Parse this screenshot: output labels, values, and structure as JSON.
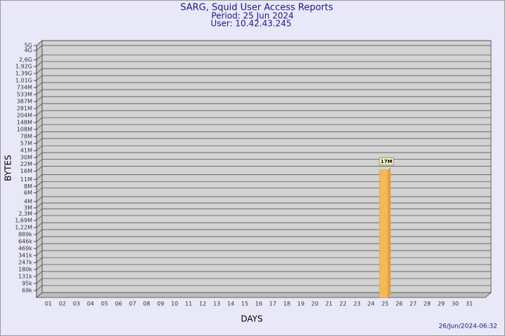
{
  "chart_data": {
    "type": "bar",
    "title": "SARG, Squid User Access Reports",
    "subtitle": [
      "Period: 25 Jun 2024",
      "User: 10.42.43.245"
    ],
    "x_label": "DAYS",
    "y_label": "BYTES",
    "footer": "26/Jun/2024-06:32",
    "categories": [
      "01",
      "02",
      "03",
      "04",
      "05",
      "06",
      "07",
      "08",
      "09",
      "10",
      "11",
      "12",
      "13",
      "14",
      "15",
      "16",
      "17",
      "18",
      "19",
      "20",
      "21",
      "22",
      "23",
      "24",
      "25",
      "26",
      "27",
      "28",
      "29",
      "30",
      "31"
    ],
    "values": [
      null,
      null,
      null,
      null,
      null,
      null,
      null,
      null,
      null,
      null,
      null,
      null,
      null,
      null,
      null,
      null,
      null,
      null,
      null,
      null,
      null,
      null,
      null,
      null,
      17000000,
      null,
      null,
      null,
      null,
      null,
      null
    ],
    "value_labels": [
      null,
      null,
      null,
      null,
      null,
      null,
      null,
      null,
      null,
      null,
      null,
      null,
      null,
      null,
      null,
      null,
      null,
      null,
      null,
      null,
      null,
      null,
      null,
      null,
      "17M",
      null,
      null,
      null,
      null,
      null,
      null
    ],
    "color": "#f5b955",
    "log_scale": true,
    "grid": true,
    "ylim": [
      50000,
      5000000000
    ],
    "yticks": [
      {
        "value": 69000,
        "label": "69k"
      },
      {
        "value": 95000,
        "label": "95k"
      },
      {
        "value": 131000,
        "label": "131k"
      },
      {
        "value": 180000,
        "label": "180k"
      },
      {
        "value": 247000,
        "label": "247k"
      },
      {
        "value": 341000,
        "label": "341k"
      },
      {
        "value": 469000,
        "label": "469k"
      },
      {
        "value": 646000,
        "label": "646k"
      },
      {
        "value": 889000,
        "label": "889k"
      },
      {
        "value": 1220000,
        "label": "1,22M"
      },
      {
        "value": 1690000,
        "label": "1,69M"
      },
      {
        "value": 2300000,
        "label": "2,3M"
      },
      {
        "value": 3000000,
        "label": "3M"
      },
      {
        "value": 4000000,
        "label": "4M"
      },
      {
        "value": 6000000,
        "label": "6M"
      },
      {
        "value": 8000000,
        "label": "8M"
      },
      {
        "value": 11000000,
        "label": "11M"
      },
      {
        "value": 16000000,
        "label": "16M"
      },
      {
        "value": 22000000,
        "label": "22M"
      },
      {
        "value": 30000000,
        "label": "30M"
      },
      {
        "value": 41000000,
        "label": "41M"
      },
      {
        "value": 57000000,
        "label": "57M"
      },
      {
        "value": 78000000,
        "label": "78M"
      },
      {
        "value": 108000000,
        "label": "108M"
      },
      {
        "value": 148000000,
        "label": "148M"
      },
      {
        "value": 204000000,
        "label": "204M"
      },
      {
        "value": 281000000,
        "label": "281M"
      },
      {
        "value": 387000000,
        "label": "387M"
      },
      {
        "value": 533000000,
        "label": "533M"
      },
      {
        "value": 734000000,
        "label": "734M"
      },
      {
        "value": 1010000000,
        "label": "1,01G"
      },
      {
        "value": 1390000000,
        "label": "1,39G"
      },
      {
        "value": 1920000000,
        "label": "1,92G"
      },
      {
        "value": 2600000000,
        "label": "2,6G"
      },
      {
        "value": 4000000000,
        "label": "4G"
      },
      {
        "value": 5000000000,
        "label": "5G"
      }
    ]
  }
}
